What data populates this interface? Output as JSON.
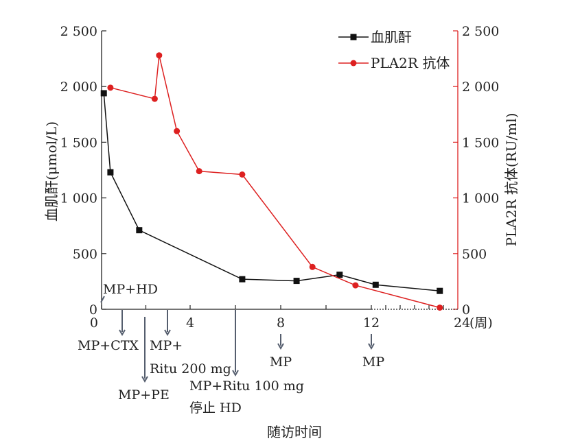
{
  "chart_data": {
    "type": "line",
    "x_tick_labels": [
      "0",
      "4",
      "8",
      "12",
      "24"
    ],
    "x_unit_label": "(周)",
    "xlabel": "随访时间",
    "y_left": {
      "label": "血肌酐(μmol/L)",
      "ticks": [
        0,
        500,
        1000,
        1500,
        2000,
        2500
      ],
      "tick_labels": [
        "0",
        "500",
        "1 000",
        "1 500",
        "2 000",
        "2 500"
      ],
      "ylim": [
        0,
        2500
      ]
    },
    "y_right": {
      "label": "PLA2R 抗体(RU/ml)",
      "ticks": [
        0,
        500,
        1000,
        1500,
        2000,
        2500
      ],
      "tick_labels": [
        "0",
        "500",
        "1 000",
        "1 500",
        "2 000",
        "2 500"
      ],
      "ylim": [
        0,
        2500
      ]
    },
    "legend_position": "top-right",
    "series": [
      {
        "name": "血肌酐",
        "axis": "left",
        "color": "#111111",
        "marker": "square",
        "x": [
          0.1,
          0.4,
          1.7,
          6.3,
          8.7,
          10.6,
          12.6,
          21.5
        ],
        "y": [
          1940,
          1230,
          710,
          270,
          255,
          310,
          220,
          165
        ]
      },
      {
        "name": "PLA2R 抗体",
        "axis": "right",
        "color": "#dd2020",
        "marker": "circle",
        "x": [
          0.4,
          2.4,
          2.6,
          3.4,
          4.4,
          6.3,
          9.4,
          11.3,
          21.5
        ],
        "y": [
          1990,
          1890,
          2280,
          1600,
          1240,
          1210,
          380,
          215,
          15
        ]
      }
    ],
    "annotations": [
      {
        "id": "mp-hd",
        "lines": [
          "MP+HD"
        ]
      },
      {
        "id": "mp-ctx",
        "lines": [
          "MP+CTX"
        ]
      },
      {
        "id": "mp-pe",
        "lines": [
          "MP+PE"
        ]
      },
      {
        "id": "mp-ritu200",
        "lines": [
          "MP+",
          "Ritu 200 mg"
        ]
      },
      {
        "id": "mp-ritu100",
        "lines": [
          "MP+Ritu 100 mg",
          "停止 HD"
        ]
      },
      {
        "id": "mp-8",
        "lines": [
          "MP"
        ]
      },
      {
        "id": "mp-12",
        "lines": [
          "MP"
        ]
      }
    ]
  }
}
